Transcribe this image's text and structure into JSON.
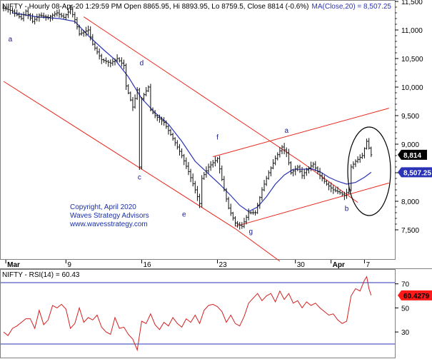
{
  "chart_data": [
    {
      "type": "line",
      "symbol": "NIFTY",
      "title": "NIFTY - Hourly 08-Apr-20 1:29:59 PM Open 8865.95, Hi 8893.95, Lo 8759.5, Close 8814 (-0.6%)",
      "ma_label": "MA(Close,20) = 8,507.25",
      "ylim": [
        7250,
        11750
      ],
      "yticks": [
        11500,
        11000,
        10500,
        10000,
        9500,
        9000,
        8500,
        8000,
        7500
      ],
      "ytick_labels": [
        "11,500",
        "11,000",
        "10,500",
        "10,000",
        "9,500",
        "9,000",
        "8,500",
        "8,000",
        "7,500"
      ],
      "x_tick_labels": [
        {
          "label": "Mar",
          "bar": 1,
          "bold": true
        },
        {
          "label": "9",
          "bar": 28,
          "bold": false
        },
        {
          "label": "16",
          "bar": 62,
          "bold": false
        },
        {
          "label": "23",
          "bar": 96,
          "bold": false
        },
        {
          "label": "30",
          "bar": 131,
          "bold": false
        },
        {
          "label": "Apr",
          "bar": 147,
          "bold": true
        },
        {
          "label": "7",
          "bar": 162,
          "bold": false
        }
      ],
      "price_series": [
        {
          "bar": 0,
          "close": 11380
        },
        {
          "bar": 4,
          "close": 11330
        },
        {
          "bar": 8,
          "close": 11200
        },
        {
          "bar": 10,
          "close": 11330
        },
        {
          "bar": 13,
          "close": 11150
        },
        {
          "bar": 16,
          "close": 11260
        },
        {
          "bar": 20,
          "close": 11220
        },
        {
          "bar": 24,
          "close": 11300
        },
        {
          "bar": 27,
          "close": 11220
        },
        {
          "bar": 30,
          "close": 11360
        },
        {
          "bar": 32,
          "close": 11180
        },
        {
          "bar": 34,
          "close": 10930
        },
        {
          "bar": 38,
          "close": 11000
        },
        {
          "bar": 40,
          "close": 10750
        },
        {
          "bar": 44,
          "close": 10480
        },
        {
          "bar": 48,
          "close": 10420
        },
        {
          "bar": 51,
          "close": 10500
        },
        {
          "bar": 54,
          "close": 10380
        },
        {
          "bar": 55,
          "close": 10020
        },
        {
          "bar": 58,
          "close": 9650
        },
        {
          "bar": 60,
          "close": 9950
        },
        {
          "bar": 61,
          "close": 8600
        },
        {
          "bar": 62,
          "close": 9800
        },
        {
          "bar": 65,
          "close": 10000
        },
        {
          "bar": 66,
          "close": 9600
        },
        {
          "bar": 68,
          "close": 9500
        },
        {
          "bar": 72,
          "close": 9380
        },
        {
          "bar": 76,
          "close": 9100
        },
        {
          "bar": 80,
          "close": 8800
        },
        {
          "bar": 83,
          "close": 8520
        },
        {
          "bar": 86,
          "close": 8200
        },
        {
          "bar": 88,
          "close": 7960
        },
        {
          "bar": 89,
          "close": 8400
        },
        {
          "bar": 92,
          "close": 8600
        },
        {
          "bar": 96,
          "close": 8750
        },
        {
          "bar": 99,
          "close": 8200
        },
        {
          "bar": 101,
          "close": 7880
        },
        {
          "bar": 104,
          "close": 7620
        },
        {
          "bar": 107,
          "close": 7560
        },
        {
          "bar": 110,
          "close": 7800
        },
        {
          "bar": 113,
          "close": 7800
        },
        {
          "bar": 116,
          "close": 8200
        },
        {
          "bar": 119,
          "close": 8500
        },
        {
          "bar": 122,
          "close": 8750
        },
        {
          "bar": 125,
          "close": 8950
        },
        {
          "bar": 127,
          "close": 8850
        },
        {
          "bar": 129,
          "close": 8500
        },
        {
          "bar": 132,
          "close": 8600
        },
        {
          "bar": 134,
          "close": 8450
        },
        {
          "bar": 136,
          "close": 8550
        },
        {
          "bar": 139,
          "close": 8650
        },
        {
          "bar": 142,
          "close": 8450
        },
        {
          "bar": 145,
          "close": 8300
        },
        {
          "bar": 148,
          "close": 8200
        },
        {
          "bar": 151,
          "close": 8150
        },
        {
          "bar": 153,
          "close": 8100
        },
        {
          "bar": 155,
          "close": 8200
        },
        {
          "bar": 156,
          "close": 8600
        },
        {
          "bar": 158,
          "close": 8700
        },
        {
          "bar": 161,
          "close": 8800
        },
        {
          "bar": 163,
          "close": 9050
        },
        {
          "bar": 165,
          "close": 8814
        }
      ],
      "ma_series": [
        {
          "bar": 4,
          "value": 11300
        },
        {
          "bar": 15,
          "value": 11230
        },
        {
          "bar": 25,
          "value": 11200
        },
        {
          "bar": 32,
          "value": 11150
        },
        {
          "bar": 38,
          "value": 10900
        },
        {
          "bar": 45,
          "value": 10650
        },
        {
          "bar": 50,
          "value": 10480
        },
        {
          "bar": 56,
          "value": 10180
        },
        {
          "bar": 62,
          "value": 9800
        },
        {
          "bar": 68,
          "value": 9550
        },
        {
          "bar": 74,
          "value": 9350
        },
        {
          "bar": 80,
          "value": 9050
        },
        {
          "bar": 86,
          "value": 8700
        },
        {
          "bar": 92,
          "value": 8480
        },
        {
          "bar": 97,
          "value": 8300
        },
        {
          "bar": 102,
          "value": 8100
        },
        {
          "bar": 106,
          "value": 7930
        },
        {
          "bar": 110,
          "value": 7820
        },
        {
          "bar": 114,
          "value": 7900
        },
        {
          "bar": 118,
          "value": 8080
        },
        {
          "bar": 122,
          "value": 8300
        },
        {
          "bar": 126,
          "value": 8460
        },
        {
          "bar": 130,
          "value": 8560
        },
        {
          "bar": 134,
          "value": 8560
        },
        {
          "bar": 138,
          "value": 8570
        },
        {
          "bar": 142,
          "value": 8520
        },
        {
          "bar": 146,
          "value": 8420
        },
        {
          "bar": 150,
          "value": 8350
        },
        {
          "bar": 154,
          "value": 8300
        },
        {
          "bar": 158,
          "value": 8330
        },
        {
          "bar": 162,
          "value": 8420
        },
        {
          "bar": 165,
          "value": 8507.25
        }
      ],
      "channel_lines": [
        {
          "from": {
            "bar": 36,
            "value": 11230
          },
          "to": {
            "bar": 134,
            "value": 8680
          }
        },
        {
          "from": {
            "bar": 134,
            "value": 8680
          },
          "to": {
            "bar": 159,
            "value": 7980
          }
        },
        {
          "from": {
            "bar": 0,
            "value": 10100
          },
          "to": {
            "bar": 104,
            "value": 7520
          }
        },
        {
          "from": {
            "bar": 104,
            "value": 7520
          },
          "to": {
            "bar": 124,
            "value": 6950
          }
        },
        {
          "from": {
            "bar": 94,
            "value": 8780
          },
          "to": {
            "bar": 173,
            "value": 9630
          }
        },
        {
          "from": {
            "bar": 104,
            "value": 7560
          },
          "to": {
            "bar": 173,
            "value": 8320
          }
        }
      ],
      "wave_labels": [
        {
          "text": "a",
          "bar": 3,
          "value": 10800
        },
        {
          "text": "d",
          "bar": 62,
          "value": 10380
        },
        {
          "text": "c",
          "bar": 61,
          "value": 8380
        },
        {
          "text": "f",
          "bar": 96,
          "value": 9080
        },
        {
          "text": "e",
          "bar": 81,
          "value": 7730
        },
        {
          "text": "g",
          "bar": 111,
          "value": 7430
        },
        {
          "text": "a",
          "bar": 127,
          "value": 9200
        },
        {
          "text": "b",
          "bar": 154,
          "value": 7830
        }
      ],
      "price_tags": [
        {
          "label": "8,814",
          "value": 8814,
          "bg": "#000000",
          "fg": "#ffffff"
        },
        {
          "label": "8,507.25",
          "value": 8507.25,
          "bg": "#2a33b5",
          "fg": "#ffffff"
        }
      ],
      "annotations": [
        "Copyright, April 2020",
        "Waves Strategy Advisors",
        "www.wavesstrategy.com"
      ]
    },
    {
      "type": "line",
      "title": "NIFTY - RSI(14) = 60.43",
      "ylim": [
        13,
        82
      ],
      "yticks": [
        70,
        50,
        30
      ],
      "reference_lines": [
        71,
        20
      ],
      "value_tag": {
        "label": "60.4279",
        "value": 60.43,
        "bg": "#ff1a1a",
        "fg": "#000000"
      },
      "series": [
        {
          "name": "RSI(14)",
          "points": [
            {
              "bar": 0,
              "value": 30
            },
            {
              "bar": 2,
              "value": 27
            },
            {
              "bar": 4,
              "value": 33
            },
            {
              "bar": 6,
              "value": 35
            },
            {
              "bar": 8,
              "value": 38
            },
            {
              "bar": 10,
              "value": 41
            },
            {
              "bar": 12,
              "value": 41
            },
            {
              "bar": 14,
              "value": 33
            },
            {
              "bar": 16,
              "value": 48
            },
            {
              "bar": 18,
              "value": 36
            },
            {
              "bar": 20,
              "value": 40
            },
            {
              "bar": 22,
              "value": 52
            },
            {
              "bar": 24,
              "value": 50
            },
            {
              "bar": 26,
              "value": 53
            },
            {
              "bar": 28,
              "value": 49
            },
            {
              "bar": 30,
              "value": 33
            },
            {
              "bar": 32,
              "value": 37
            },
            {
              "bar": 34,
              "value": 50
            },
            {
              "bar": 36,
              "value": 38
            },
            {
              "bar": 38,
              "value": 42
            },
            {
              "bar": 40,
              "value": 40
            },
            {
              "bar": 42,
              "value": 44
            },
            {
              "bar": 44,
              "value": 34
            },
            {
              "bar": 46,
              "value": 30
            },
            {
              "bar": 48,
              "value": 28
            },
            {
              "bar": 50,
              "value": 42
            },
            {
              "bar": 52,
              "value": 33
            },
            {
              "bar": 54,
              "value": 34
            },
            {
              "bar": 56,
              "value": 28
            },
            {
              "bar": 58,
              "value": 24
            },
            {
              "bar": 60,
              "value": 15
            },
            {
              "bar": 62,
              "value": 39
            },
            {
              "bar": 64,
              "value": 37
            },
            {
              "bar": 66,
              "value": 45
            },
            {
              "bar": 68,
              "value": 36
            },
            {
              "bar": 70,
              "value": 32
            },
            {
              "bar": 72,
              "value": 38
            },
            {
              "bar": 74,
              "value": 35
            },
            {
              "bar": 76,
              "value": 42
            },
            {
              "bar": 78,
              "value": 37
            },
            {
              "bar": 80,
              "value": 34
            },
            {
              "bar": 82,
              "value": 41
            },
            {
              "bar": 84,
              "value": 38
            },
            {
              "bar": 86,
              "value": 44
            },
            {
              "bar": 88,
              "value": 37
            },
            {
              "bar": 90,
              "value": 48
            },
            {
              "bar": 92,
              "value": 52
            },
            {
              "bar": 94,
              "value": 53
            },
            {
              "bar": 96,
              "value": 51
            },
            {
              "bar": 98,
              "value": 47
            },
            {
              "bar": 100,
              "value": 38
            },
            {
              "bar": 102,
              "value": 44
            },
            {
              "bar": 104,
              "value": 37
            },
            {
              "bar": 106,
              "value": 35
            },
            {
              "bar": 108,
              "value": 43
            },
            {
              "bar": 110,
              "value": 54
            },
            {
              "bar": 112,
              "value": 58
            },
            {
              "bar": 114,
              "value": 62
            },
            {
              "bar": 116,
              "value": 56
            },
            {
              "bar": 118,
              "value": 60
            },
            {
              "bar": 120,
              "value": 62
            },
            {
              "bar": 122,
              "value": 55
            },
            {
              "bar": 124,
              "value": 64
            },
            {
              "bar": 126,
              "value": 57
            },
            {
              "bar": 128,
              "value": 62
            },
            {
              "bar": 130,
              "value": 54
            },
            {
              "bar": 132,
              "value": 56
            },
            {
              "bar": 134,
              "value": 50
            },
            {
              "bar": 136,
              "value": 55
            },
            {
              "bar": 138,
              "value": 52
            },
            {
              "bar": 140,
              "value": 54
            },
            {
              "bar": 142,
              "value": 50
            },
            {
              "bar": 144,
              "value": 47
            },
            {
              "bar": 146,
              "value": 44
            },
            {
              "bar": 148,
              "value": 45
            },
            {
              "bar": 150,
              "value": 40
            },
            {
              "bar": 152,
              "value": 37
            },
            {
              "bar": 154,
              "value": 39
            },
            {
              "bar": 156,
              "value": 60
            },
            {
              "bar": 158,
              "value": 66
            },
            {
              "bar": 160,
              "value": 64
            },
            {
              "bar": 162,
              "value": 73
            },
            {
              "bar": 163,
              "value": 76
            },
            {
              "bar": 164,
              "value": 66
            },
            {
              "bar": 165,
              "value": 60.43
            }
          ]
        }
      ]
    }
  ]
}
